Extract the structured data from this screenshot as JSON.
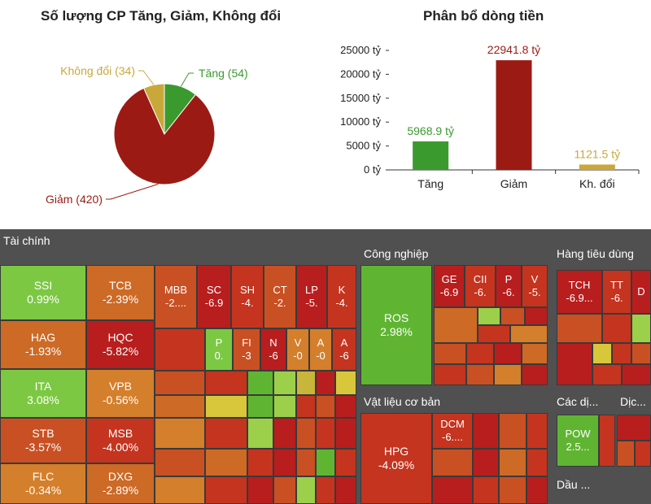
{
  "chart_data": [
    {
      "type": "pie",
      "title": "Số lượng CP Tăng, Giảm, Không đổi",
      "labels": [
        "Tăng (54)",
        "Giảm (420)",
        "Không đổi (34)"
      ],
      "values": [
        54,
        420,
        34
      ],
      "colors": [
        "#3a9a2e",
        "#9b1b14",
        "#c9a83a"
      ]
    },
    {
      "type": "bar",
      "title": "Phân bổ dòng tiền",
      "categories": [
        "Tăng",
        "Giảm",
        "Kh. đổi"
      ],
      "values": [
        5968.9,
        22941.8,
        1121.5
      ],
      "value_labels": [
        "5968.9 tỷ",
        "22941.8 tỷ",
        "1121.5 tỷ"
      ],
      "colors": [
        "#3a9a2e",
        "#9b1b14",
        "#c9a83a"
      ],
      "ylim": [
        0,
        25000
      ],
      "yticks": [
        "0 tỷ",
        "5000 tỷ",
        "10000 tỷ",
        "15000 tỷ",
        "20000 tỷ",
        "25000 tỷ"
      ]
    }
  ],
  "treemap": {
    "sections": {
      "taichinh": "Tài chính",
      "congnghiep": "Công nghiệp",
      "hangtieudung": "Hàng tiêu dùng",
      "vatlieu": "Vật liệu cơ bản",
      "cacdich": "Các dị...",
      "dich": "Dịc...",
      "dau": "Dầu ..."
    },
    "cells": {
      "SSI": {
        "sym": "SSI",
        "pct": "0.99%"
      },
      "TCB": {
        "sym": "TCB",
        "pct": "-2.39%"
      },
      "HAG": {
        "sym": "HAG",
        "pct": "-1.93%"
      },
      "HQC": {
        "sym": "HQC",
        "pct": "-5.82%"
      },
      "ITA": {
        "sym": "ITA",
        "pct": "3.08%"
      },
      "VPB": {
        "sym": "VPB",
        "pct": "-0.56%"
      },
      "STB": {
        "sym": "STB",
        "pct": "-3.57%"
      },
      "MSB": {
        "sym": "MSB",
        "pct": "-4.00%"
      },
      "FLC": {
        "sym": "FLC",
        "pct": "-0.34%"
      },
      "DXG": {
        "sym": "DXG",
        "pct": "-2.89%"
      },
      "MBB": {
        "sym": "MBB",
        "pct": "-2...."
      },
      "SC": {
        "sym": "SC",
        "pct": "-6.9"
      },
      "SH": {
        "sym": "SH",
        "pct": "-4."
      },
      "CT": {
        "sym": "CT",
        "pct": "-2."
      },
      "LP": {
        "sym": "LP",
        "pct": "-5."
      },
      "K": {
        "sym": "K",
        "pct": "-4."
      },
      "P": {
        "sym": "P",
        "pct": "0."
      },
      "FI": {
        "sym": "FI",
        "pct": "-3"
      },
      "N": {
        "sym": "N",
        "pct": "-6"
      },
      "V": {
        "sym": "V",
        "pct": "-0"
      },
      "A1": {
        "sym": "A",
        "pct": "-0"
      },
      "A2": {
        "sym": "A",
        "pct": "-6"
      },
      "ROS": {
        "sym": "ROS",
        "pct": "2.98%"
      },
      "GE": {
        "sym": "GE",
        "pct": "-6.9"
      },
      "CII": {
        "sym": "CII",
        "pct": "-6."
      },
      "P2": {
        "sym": "P",
        "pct": "-6."
      },
      "V2": {
        "sym": "V",
        "pct": "-5."
      },
      "TCH": {
        "sym": "TCH",
        "pct": "-6.9..."
      },
      "TT": {
        "sym": "TT",
        "pct": "-6."
      },
      "D": {
        "sym": "D",
        "pct": ""
      },
      "HPG": {
        "sym": "HPG",
        "pct": "-4.09%"
      },
      "DCM": {
        "sym": "DCM",
        "pct": "-6...."
      },
      "POW": {
        "sym": "POW",
        "pct": "2.5..."
      }
    }
  }
}
